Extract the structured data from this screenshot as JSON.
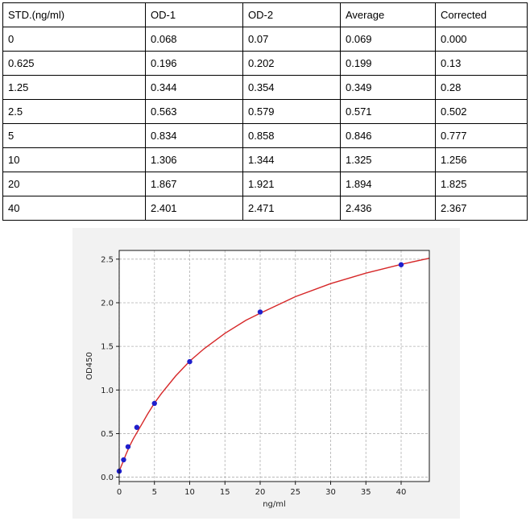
{
  "table": {
    "headers": [
      "STD.(ng/ml)",
      "OD-1",
      "OD-2",
      "Average",
      "Corrected"
    ],
    "rows": [
      [
        "0",
        "0.068",
        "0.07",
        "0.069",
        "0.000"
      ],
      [
        "0.625",
        "0.196",
        "0.202",
        "0.199",
        "0.13"
      ],
      [
        "1.25",
        "0.344",
        "0.354",
        "0.349",
        "0.28"
      ],
      [
        "2.5",
        "0.563",
        "0.579",
        "0.571",
        "0.502"
      ],
      [
        "5",
        "0.834",
        "0.858",
        "0.846",
        "0.777"
      ],
      [
        "10",
        "1.306",
        "1.344",
        "1.325",
        "1.256"
      ],
      [
        "20",
        "1.867",
        "1.921",
        "1.894",
        "1.825"
      ],
      [
        "40",
        "2.401",
        "2.471",
        "2.436",
        "2.367"
      ]
    ]
  },
  "chart_data": {
    "type": "scatter",
    "title": "",
    "xlabel": "ng/ml",
    "ylabel": "OD450",
    "xlim": [
      0,
      44
    ],
    "ylim": [
      -0.05,
      2.6
    ],
    "xticks": [
      0,
      5,
      10,
      15,
      20,
      25,
      30,
      35,
      40
    ],
    "yticks": [
      0.0,
      0.5,
      1.0,
      1.5,
      2.0,
      2.5
    ],
    "x_tick_labels": [
      "0",
      "5",
      "10",
      "15",
      "20",
      "25",
      "30",
      "35",
      "40"
    ],
    "y_tick_labels": [
      "0.0",
      "0.5",
      "1.0",
      "1.5",
      "2.0",
      "2.5"
    ],
    "grid": true,
    "points": {
      "x": [
        0,
        0.625,
        1.25,
        2.5,
        5,
        10,
        20,
        40
      ],
      "y": [
        0.069,
        0.199,
        0.349,
        0.571,
        0.846,
        1.325,
        1.894,
        2.436
      ],
      "color": "#1f1fcc"
    },
    "fit_curve": {
      "color": "#d62728",
      "x": [
        0,
        0.5,
        1,
        1.5,
        2,
        3,
        4,
        5,
        6,
        8,
        10,
        12,
        15,
        18,
        20,
        25,
        30,
        35,
        40,
        44
      ],
      "y": [
        0.069,
        0.17,
        0.27,
        0.36,
        0.44,
        0.58,
        0.72,
        0.85,
        0.96,
        1.16,
        1.33,
        1.47,
        1.65,
        1.8,
        1.88,
        2.07,
        2.22,
        2.34,
        2.44,
        2.51
      ]
    }
  }
}
